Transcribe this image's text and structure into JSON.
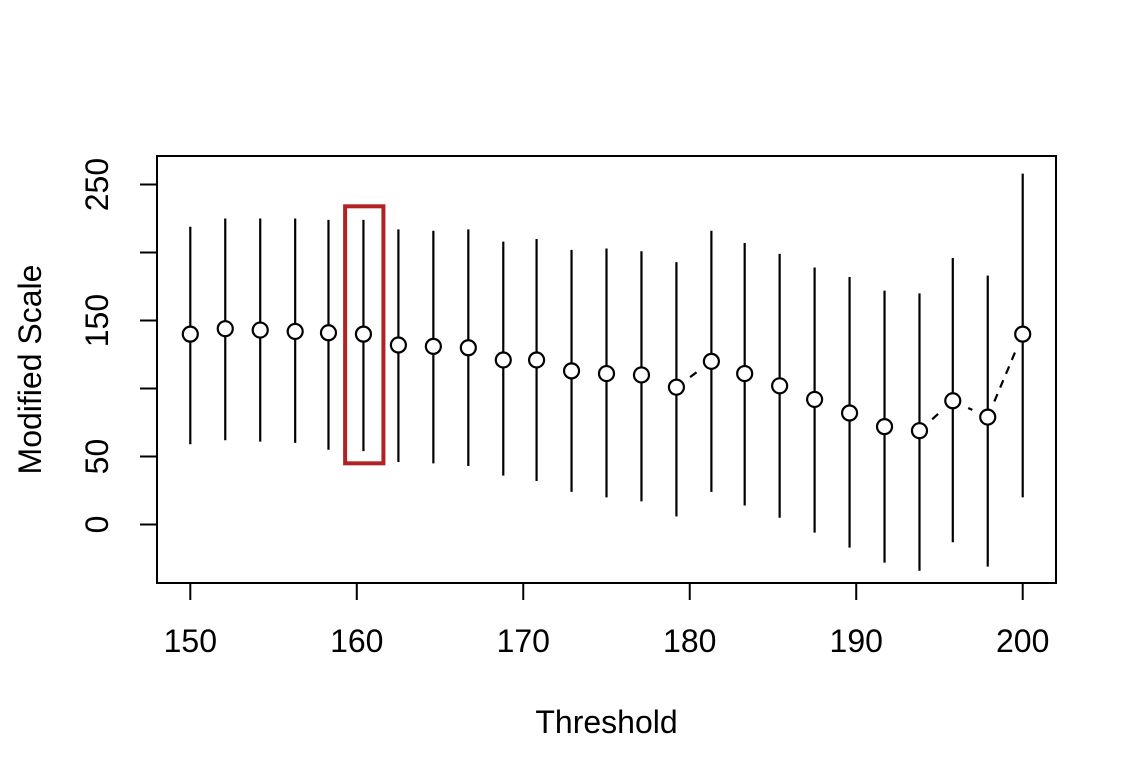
{
  "figure": {
    "background_color": "#FFFFFF",
    "foreground_color": "#000000"
  },
  "chart_data": {
    "type": "scatter",
    "subtype": "point-estimates-with-error-bars",
    "title": "",
    "xlabel": "Threshold",
    "ylabel": "Modified Scale",
    "xlim": [
      148,
      202
    ],
    "ylim": [
      -43,
      271
    ],
    "grid": false,
    "legend": null,
    "x_ticks": [
      150,
      160,
      170,
      180,
      190,
      200
    ],
    "x_tick_labels": [
      "150",
      "160",
      "170",
      "180",
      "190",
      "200"
    ],
    "y_ticks": [
      0,
      50,
      100,
      150,
      200,
      250
    ],
    "y_tick_labels": [
      "0",
      "50",
      "",
      "150",
      "",
      "250"
    ],
    "series": [
      {
        "name": "modified-scale-estimates",
        "marker": "open-circle",
        "marker_fill": "#FFFFFF",
        "line_style": "dashed",
        "color": "#000000",
        "x": [
          150.0,
          152.1,
          154.2,
          156.3,
          158.3,
          160.4,
          162.5,
          164.6,
          166.7,
          168.8,
          170.8,
          172.9,
          175.0,
          177.1,
          179.2,
          181.3,
          183.3,
          185.4,
          187.5,
          189.6,
          191.7,
          193.8,
          195.8,
          197.9,
          200.0
        ],
        "y": [
          140,
          144,
          143,
          142,
          141,
          140,
          132,
          131,
          130,
          121,
          121,
          113,
          111,
          110,
          101,
          120,
          111,
          102,
          92,
          82,
          72,
          69,
          91,
          79,
          140
        ],
        "lower": [
          59,
          62,
          61,
          60,
          55,
          54,
          46,
          45,
          43,
          36,
          32,
          24,
          20,
          17,
          6,
          24,
          14,
          5,
          -6,
          -17,
          -28,
          -34,
          -13,
          -31,
          20
        ],
        "upper": [
          219,
          225,
          225,
          225,
          224,
          224,
          217,
          216,
          217,
          208,
          210,
          202,
          203,
          201,
          193,
          216,
          207,
          199,
          189,
          182,
          172,
          170,
          196,
          183,
          258
        ]
      }
    ],
    "highlight_box": {
      "name": "selected-threshold-box",
      "color": "#B22222",
      "x_range": [
        159.3,
        161.6
      ],
      "y_range": [
        45,
        234
      ]
    }
  }
}
